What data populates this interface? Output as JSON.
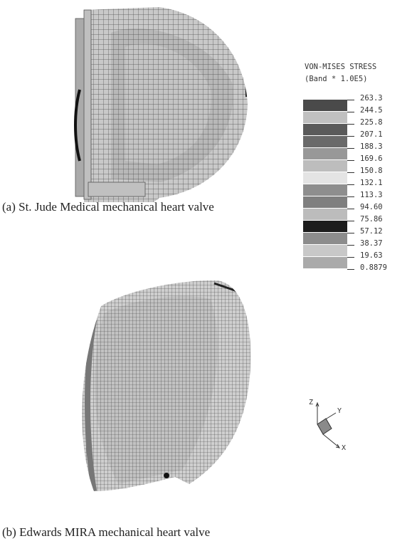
{
  "caption_a": "(a) St. Jude Medical mechanical heart valve",
  "caption_b": "(b) Edwards MIRA mechanical heart valve",
  "legend": {
    "title": "VON-MISES STRESS",
    "subtitle": "(Band * 1.0E5)",
    "ticks": [
      "263.3",
      "244.5",
      "225.8",
      "207.1",
      "188.3",
      "169.6",
      "150.8",
      "132.1",
      "113.3",
      "94.60",
      "75.86",
      "57.12",
      "38.37",
      "19.63",
      "0.8879"
    ],
    "band_colors": [
      "#4a4a4a",
      "#c0c0c0",
      "#5a5a5a",
      "#6a6a6a",
      "#989898",
      "#bdbdbd",
      "#e4e4e4",
      "#8e8e8e",
      "#7f7f7f",
      "#bcbcbc",
      "#1c1c1c",
      "#8c8c8c",
      "#c8c8c8",
      "#aaaaaa"
    ]
  },
  "axes": {
    "z": "Z",
    "y": "Y",
    "x": "X"
  }
}
